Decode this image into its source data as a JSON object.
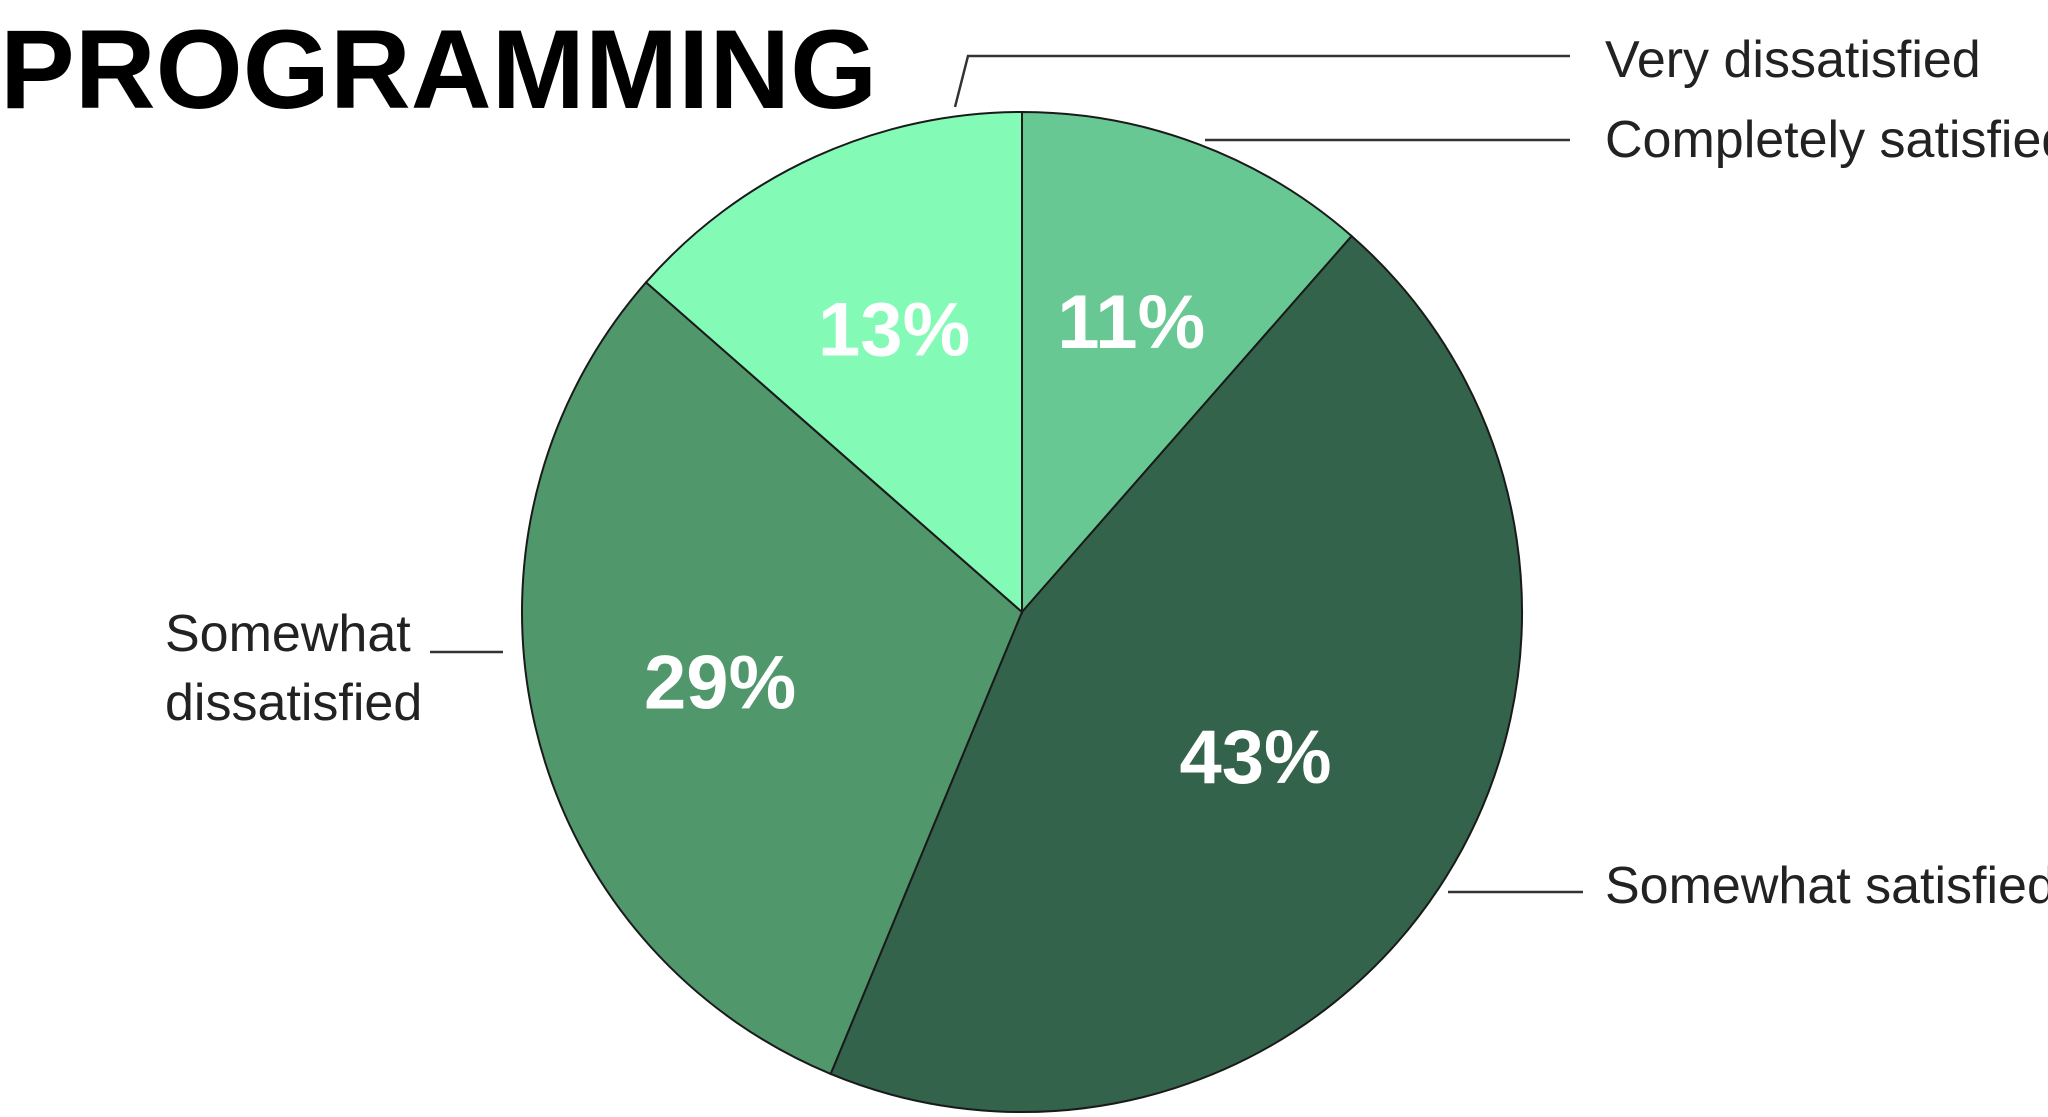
{
  "chart_data": {
    "type": "pie",
    "title": "PROGRAMMING",
    "slices": [
      {
        "label": "Completely satisfied",
        "value": 11,
        "display": "11%",
        "color": "#68c893"
      },
      {
        "label": "Somewhat satisfied",
        "value": 43,
        "display": "43%",
        "color": "#33634b"
      },
      {
        "label": "Somewhat dissatisfied",
        "value": 29,
        "display": "29%",
        "color": "#50976c"
      },
      {
        "label": "Very dissatisfied",
        "value": 13,
        "display": "13%",
        "color": "#84fab7"
      }
    ]
  }
}
